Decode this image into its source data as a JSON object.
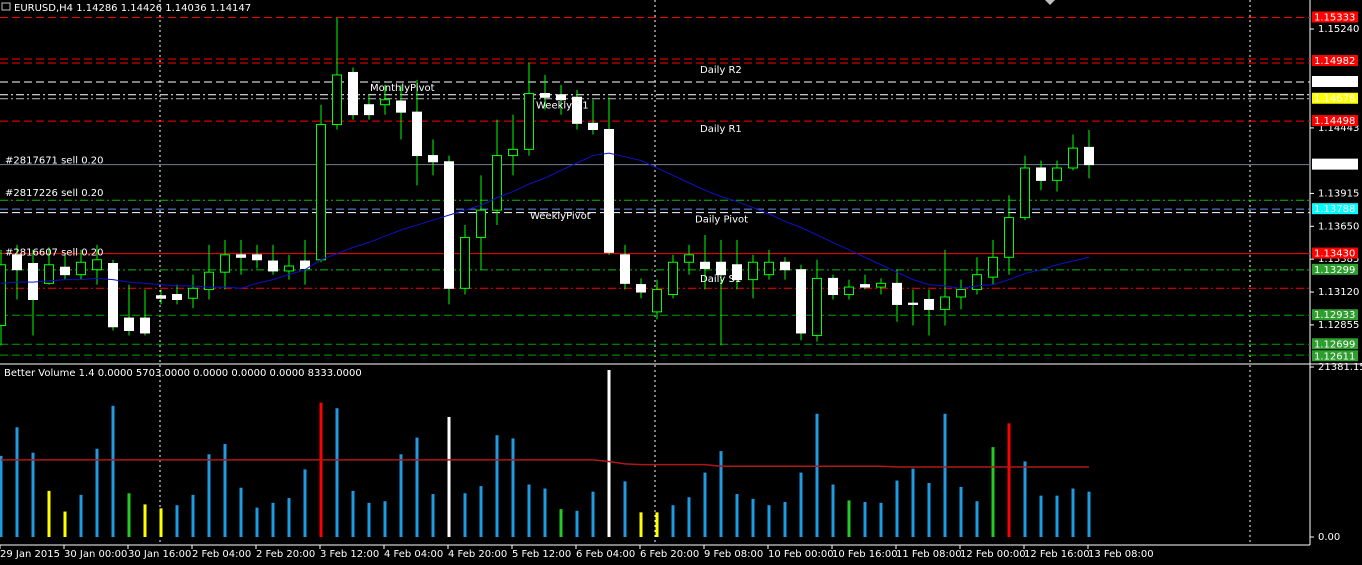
{
  "chart_data": [
    {
      "type": "candlestick",
      "title": "EURUSD,H4  1.14286 1.14426 1.14036 1.14147",
      "categories": [
        "29 Jan 2015",
        null,
        null,
        null,
        "30 Jan 00:00",
        null,
        null,
        null,
        "30 Jan 16:00",
        null,
        null,
        null,
        "2 Feb 04:00",
        null,
        null,
        null,
        "2 Feb 20:00",
        null,
        null,
        null,
        "3 Feb 12:00",
        null,
        null,
        null,
        "4 Feb 04:00",
        null,
        null,
        null,
        "4 Feb 20:00",
        null,
        null,
        null,
        "5 Feb 12:00",
        null,
        null,
        null,
        "6 Feb 04:00",
        null,
        null,
        null,
        "6 Feb 20:00",
        null,
        null,
        null,
        "9 Feb 08:00",
        null,
        null,
        null,
        "10 Feb 00:00",
        null,
        null,
        null,
        "10 Feb 16:00",
        null,
        null,
        null,
        "11 Feb 08:00",
        null,
        null,
        null,
        "12 Feb 00:00",
        null,
        null,
        null,
        "12 Feb 16:00",
        null,
        null,
        null,
        "13 Feb 08:00"
      ],
      "open": [
        1.1285,
        1.1342,
        1.1335,
        1.1319,
        1.1332,
        1.1326,
        1.133,
        1.1335,
        1.1291,
        1.1291,
        1.1309,
        1.131,
        1.1307,
        1.1314,
        1.1328,
        1.1342,
        1.1342,
        1.1337,
        1.1329,
        1.1337,
        1.1338,
        1.1447,
        1.1489,
        1.1463,
        1.1463,
        1.1466,
        1.1457,
        1.1422,
        1.1417,
        1.1315,
        1.1356,
        1.1378,
        1.1422,
        1.1427,
        1.1472,
        1.1471,
        1.1469,
        1.1448,
        1.1443,
        1.1342,
        1.1318,
        1.1296,
        1.131,
        1.1336,
        1.1336,
        1.1336,
        1.1334,
        1.1322,
        1.1326,
        1.1336,
        1.133,
        1.1277,
        1.1323,
        1.131,
        1.1318,
        1.1316,
        1.1319,
        1.1303,
        1.1306,
        1.1298,
        1.1308,
        1.1314,
        1.1324,
        1.134,
        1.1372,
        1.1412,
        1.1402,
        1.1412,
        1.14286
      ],
      "high": [
        1.1346,
        1.135,
        1.1346,
        1.1348,
        1.1342,
        1.1346,
        1.135,
        1.1338,
        1.1318,
        1.1314,
        1.1314,
        1.1318,
        1.1326,
        1.135,
        1.1354,
        1.1354,
        1.135,
        1.135,
        1.1342,
        1.1354,
        1.1463,
        1.1533,
        1.1493,
        1.1471,
        1.1479,
        1.1479,
        1.1483,
        1.1435,
        1.1422,
        1.1366,
        1.1406,
        1.1451,
        1.1455,
        1.1497,
        1.1487,
        1.1479,
        1.1475,
        1.1467,
        1.1469,
        1.135,
        1.1323,
        1.1322,
        1.1342,
        1.135,
        1.1358,
        1.1354,
        1.1354,
        1.1342,
        1.1346,
        1.134,
        1.1334,
        1.1338,
        1.1326,
        1.1322,
        1.1326,
        1.1323,
        1.133,
        1.1314,
        1.1314,
        1.1346,
        1.1322,
        1.134,
        1.1354,
        1.139,
        1.1422,
        1.1418,
        1.1418,
        1.1439,
        1.14426
      ],
      "low": [
        1.1269,
        1.1306,
        1.1277,
        1.1318,
        1.1322,
        1.1322,
        1.1318,
        1.1281,
        1.1277,
        1.1277,
        1.1302,
        1.1302,
        1.1299,
        1.1306,
        1.1314,
        1.1326,
        1.1331,
        1.1326,
        1.1322,
        1.1318,
        1.1336,
        1.1443,
        1.1451,
        1.1451,
        1.1455,
        1.1435,
        1.1398,
        1.1406,
        1.1302,
        1.131,
        1.133,
        1.1366,
        1.1406,
        1.1422,
        1.1459,
        1.1455,
        1.1443,
        1.1439,
        1.1342,
        1.1314,
        1.1307,
        1.129,
        1.1307,
        1.1326,
        1.1314,
        1.1269,
        1.1314,
        1.1307,
        1.1322,
        1.1322,
        1.1273,
        1.1272,
        1.1306,
        1.1306,
        1.1314,
        1.131,
        1.1288,
        1.1285,
        1.1277,
        1.1285,
        1.1298,
        1.131,
        1.1318,
        1.1326,
        1.137,
        1.1394,
        1.1393,
        1.141,
        1.14036
      ],
      "close": [
        1.1334,
        1.133,
        1.1306,
        1.1334,
        1.1326,
        1.1336,
        1.1338,
        1.1284,
        1.1281,
        1.1279,
        1.1307,
        1.1306,
        1.1315,
        1.1328,
        1.1342,
        1.134,
        1.1338,
        1.1329,
        1.1333,
        1.1331,
        1.1447,
        1.1487,
        1.1455,
        1.1455,
        1.1467,
        1.1457,
        1.1422,
        1.1417,
        1.1315,
        1.1356,
        1.1378,
        1.1422,
        1.1427,
        1.1472,
        1.1469,
        1.1467,
        1.1448,
        1.1443,
        1.1344,
        1.1319,
        1.1312,
        1.1314,
        1.1336,
        1.1342,
        1.1331,
        1.1326,
        1.1322,
        1.1336,
        1.1336,
        1.133,
        1.1279,
        1.1323,
        1.131,
        1.1316,
        1.1316,
        1.1319,
        1.1302,
        1.1302,
        1.1298,
        1.1308,
        1.1314,
        1.1326,
        1.134,
        1.1372,
        1.1412,
        1.1402,
        1.1412,
        1.1428,
        1.14147
      ],
      "up_color": "#000000",
      "down_color": "#ffffff",
      "wick_color": "#00ff00",
      "ma": {
        "color": "#1010c8",
        "values": [
          1.1319,
          1.132,
          1.132,
          1.1321,
          1.1322,
          1.1322,
          1.1323,
          1.1322,
          1.132,
          1.1319,
          1.1318,
          1.1317,
          1.1317,
          1.1316,
          1.1316,
          1.1315,
          1.1319,
          1.1322,
          1.1326,
          1.133,
          1.1338,
          1.1343,
          1.1348,
          1.1352,
          1.1357,
          1.1362,
          1.1366,
          1.137,
          1.1374,
          1.1378,
          1.1382,
          1.1388,
          1.1393,
          1.1399,
          1.1404,
          1.141,
          1.1416,
          1.1422,
          1.1424,
          1.1421,
          1.1418,
          1.1412,
          1.1406,
          1.14,
          1.1394,
          1.1389,
          1.1385,
          1.138,
          1.1375,
          1.1369,
          1.1364,
          1.1358,
          1.1352,
          1.1346,
          1.134,
          1.1334,
          1.1328,
          1.1322,
          1.1318,
          1.1317,
          1.1315,
          1.1317,
          1.1318,
          1.1322,
          1.1327,
          1.133,
          1.1334,
          1.1337,
          1.134
        ]
      },
      "ylim": [
        1.12556,
        1.15474
      ],
      "yticks": [
        {
          "value": 1.1524,
          "label": "1.15240"
        },
        1.14443,
        1.13915,
        {
          "value": 1.1365,
          "label": "1.13650"
        },
        1.13385,
        {
          "value": 1.1312,
          "label": "1.13120"
        },
        1.12855
      ],
      "levels": [
        {
          "value": 1.15333,
          "label": "1.15333",
          "color": "#ff0000",
          "style": "dash",
          "box_color": "#ff0000",
          "text_color": "#ffffff"
        },
        {
          "value": 1.14982,
          "label": "1.14982",
          "color": "#ff0000",
          "style": "double",
          "box_color": "#ff0000",
          "text_color": "#ffffff",
          "tag": "Daily R2",
          "tag_color": "#ff0000"
        },
        {
          "value": 1.14813,
          "label": "1.14813",
          "color": "#ffffff",
          "style": "dash",
          "box_color": "#ffffff",
          "text_color": "#000000"
        },
        {
          "value": 1.1471,
          "color": "#ffffff",
          "style": "dashdot",
          "tag": "MonthlyPivot",
          "tag_color": "#ffffff"
        },
        {
          "value": 1.14678,
          "label": "1.14678",
          "color": "#c0c0c0",
          "style": "dashdot",
          "box_color": "#ffff00",
          "text_color": "#000000",
          "tag": "Weekly R1",
          "tag_color": "#ffff00"
        },
        {
          "value": 1.14498,
          "label": "1.14498",
          "color": "#ff0000",
          "style": "dash",
          "box_color": "#ff0000",
          "text_color": "#ffffff",
          "tag": "Daily R1",
          "tag_color": "#ff0000"
        },
        {
          "value": 1.14147,
          "label": "1.14147",
          "color": "#708090",
          "style": "solid",
          "box_color": "#ffffff",
          "text_color": "#000000",
          "tag": "#2817671 sell 0.20",
          "tag_color": "#ffffff"
        },
        {
          "value": 1.1386,
          "color": "#00c000",
          "style": "dashdot",
          "tag": "#2817226 sell 0.20",
          "tag_color": "#ffffff"
        },
        {
          "value": 1.13788,
          "label": "1.13788",
          "color": "#6495ed",
          "style": "dash",
          "box_color": "#00ffff",
          "text_color": "#000000",
          "tag": "WeeklyPivot",
          "tag_color": "#00ffff"
        },
        {
          "value": 1.1376,
          "color": "#ffffff",
          "style": "dash",
          "tag": "Daily Pivot",
          "tag_color": "#ff00ff"
        },
        {
          "value": 1.1343,
          "label": "1.13430",
          "color": "#ff0000",
          "style": "solid",
          "box_color": "#ff0000",
          "text_color": "#ffffff",
          "tag": "#2816607 sell 0.20",
          "tag_color": "#ffffff"
        },
        {
          "value": 1.13299,
          "label": "1.13299",
          "color": "#00c000",
          "style": "dashdot",
          "box_color": "#2e9e2e",
          "text_color": "#000000",
          "tag": "Daily S1",
          "tag_color": "#00c000"
        },
        {
          "value": 1.1315,
          "color": "#ff0000",
          "style": "dashdot"
        },
        {
          "value": 1.12933,
          "label": "1.12933",
          "color": "#00a000",
          "style": "dash",
          "box_color": "#2e9e2e",
          "text_color": "#000000"
        },
        {
          "value": 1.12699,
          "label": "1.12699",
          "color": "#00a000",
          "style": "dash",
          "box_color": "#2e9e2e",
          "text_color": "#000000"
        },
        {
          "value": 1.12611,
          "label": "1.12611",
          "color": "#00a000",
          "style": "dash",
          "box_color": "#2e9e2e",
          "text_color": "#000000"
        }
      ]
    },
    {
      "type": "bar",
      "title": "Better Volume 1.4 0.0000 5703.0000 0.0000 0.0000 0.0000 8333.0000",
      "values": [
        10200,
        13800,
        10600,
        5800,
        3200,
        5300,
        11100,
        16500,
        5500,
        4100,
        3600,
        4000,
        5300,
        10400,
        11700,
        6200,
        3700,
        4300,
        4900,
        8500,
        16900,
        16200,
        5800,
        4300,
        4500,
        10400,
        12500,
        5400,
        15100,
        5500,
        6400,
        12800,
        12400,
        6600,
        6100,
        3500,
        3300,
        5700,
        21000,
        7000,
        3100,
        3100,
        4000,
        5000,
        8100,
        10800,
        5400,
        4800,
        4000,
        4400,
        8100,
        15500,
        6600,
        4600,
        4400,
        4300,
        7100,
        8600,
        6800,
        15500,
        6300,
        4500,
        11300,
        14300,
        9500,
        5200,
        5200,
        6100,
        5700
      ],
      "colors": [
        "#1e9be0",
        "#1e9be0",
        "#1e9be0",
        "#ffff00",
        "#ffff00",
        "#1e9be0",
        "#1e9be0",
        "#1e9be0",
        "#22cc22",
        "#ffff00",
        "#ffff00",
        "#1e9be0",
        "#1e9be0",
        "#1e9be0",
        "#1e9be0",
        "#1e9be0",
        "#1e9be0",
        "#1e9be0",
        "#1e9be0",
        "#1e9be0",
        "#ff0000",
        "#1e9be0",
        "#1e9be0",
        "#1e9be0",
        "#1e9be0",
        "#1e9be0",
        "#1e9be0",
        "#1e9be0",
        "#ffffff",
        "#1e9be0",
        "#1e9be0",
        "#1e9be0",
        "#1e9be0",
        "#1e9be0",
        "#1e9be0",
        "#22cc22",
        "#1e9be0",
        "#1e9be0",
        "#ffffff",
        "#1e9be0",
        "#ffff00",
        "#ffff00",
        "#1e9be0",
        "#1e9be0",
        "#1e9be0",
        "#1e9be0",
        "#1e9be0",
        "#1e9be0",
        "#1e9be0",
        "#1e9be0",
        "#1e9be0",
        "#1e9be0",
        "#1e9be0",
        "#22cc22",
        "#1e9be0",
        "#1e9be0",
        "#1e9be0",
        "#1e9be0",
        "#1e9be0",
        "#1e9be0",
        "#1e9be0",
        "#1e9be0",
        "#22cc22",
        "#ff0000",
        "#1e9be0",
        "#1e9be0",
        "#1e9be0",
        "#1e9be0",
        "#1e9be0"
      ],
      "ma": {
        "color": "#b01818",
        "values": [
          9700,
          9700,
          9700,
          9700,
          9700,
          9700,
          9700,
          9700,
          9700,
          9700,
          9700,
          9700,
          9700,
          9700,
          9700,
          9700,
          9700,
          9700,
          9700,
          9700,
          9700,
          9700,
          9700,
          9700,
          9700,
          9700,
          9700,
          9700,
          9700,
          9700,
          9700,
          9700,
          9700,
          9700,
          9700,
          9700,
          9700,
          9700,
          9500,
          9200,
          9100,
          9100,
          9100,
          9100,
          9100,
          8900,
          8900,
          8900,
          8900,
          8900,
          8900,
          8900,
          8900,
          8900,
          8900,
          8900,
          8800,
          8800,
          8800,
          8800,
          8800,
          8800,
          8800,
          8800,
          8800,
          8800,
          8800,
          8800,
          8800
        ]
      },
      "ylim": [
        0,
        21381.15
      ],
      "yticks": [
        21381.15,
        {
          "value": 0,
          "label": "0.00"
        }
      ]
    }
  ]
}
